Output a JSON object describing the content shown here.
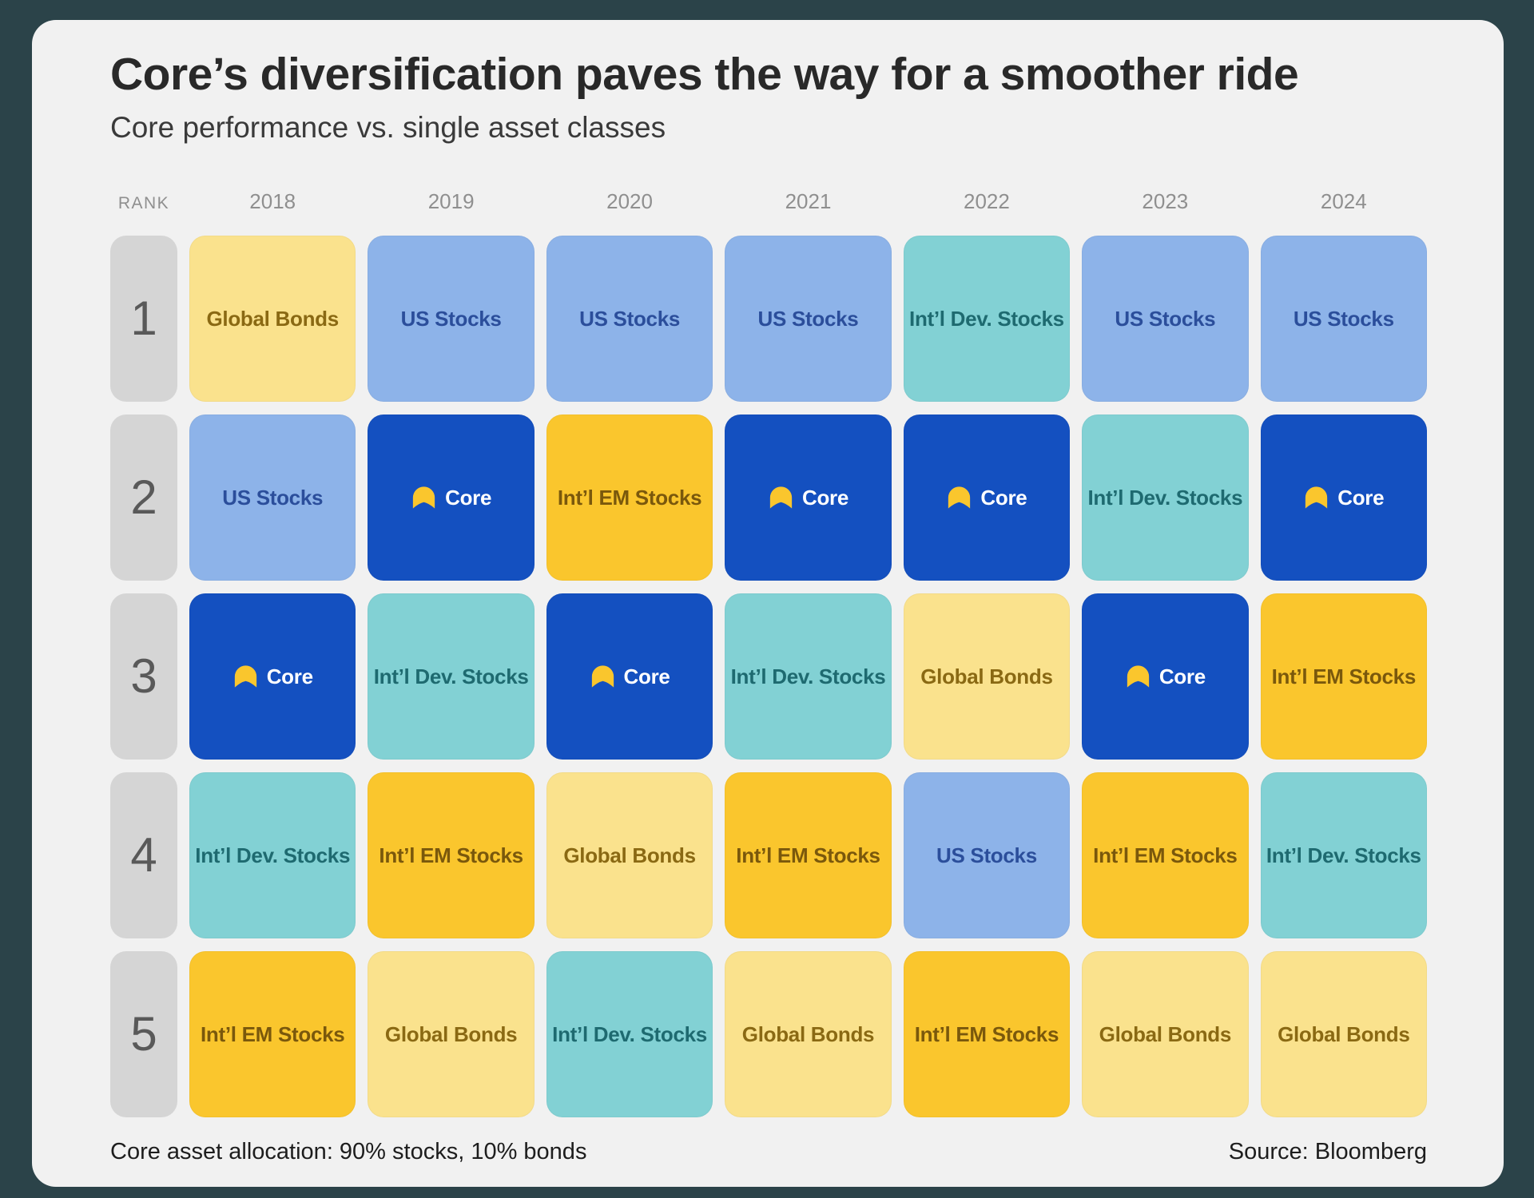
{
  "title": "Core’s diversification paves the way for a smoother ride",
  "subtitle": "Core performance vs. single asset classes",
  "footer": {
    "left": "Core asset allocation: 90% stocks, 10% bonds",
    "right": "Source: Bloomberg"
  },
  "colors": {
    "page_background": "#2B4349",
    "card_background": "#F1F1F1",
    "rank_pill": "#D5D5D5",
    "header_text": "#8F8F8F"
  },
  "assets": {
    "us_stocks": {
      "label": "US Stocks",
      "bg": "#8DB3E9",
      "fg": "#2B4E9B"
    },
    "core": {
      "label": "Core",
      "bg": "#1450C0",
      "fg": "#FFFFFF",
      "icon": "core-logo-icon",
      "icon_color": "#FAC62D"
    },
    "intl_dev_stocks": {
      "label": "Int’l Dev. Stocks",
      "bg": "#82D1D4",
      "fg": "#1E6A70"
    },
    "intl_em_stocks": {
      "label": "Int’l EM Stocks",
      "bg": "#FAC62D",
      "fg": "#7A580C"
    },
    "global_bonds": {
      "label": "Global Bonds",
      "bg": "#FAE28D",
      "fg": "#8A6913"
    }
  },
  "chart_data": {
    "type": "table",
    "title": "Core’s diversification paves the way for a smoother ride",
    "subtitle": "Core performance vs. single asset classes",
    "row_label_header": "RANK",
    "rows": [
      "1",
      "2",
      "3",
      "4",
      "5"
    ],
    "columns": [
      "2018",
      "2019",
      "2020",
      "2021",
      "2022",
      "2023",
      "2024"
    ],
    "cells": [
      [
        "global_bonds",
        "us_stocks",
        "us_stocks",
        "us_stocks",
        "intl_dev_stocks",
        "us_stocks",
        "us_stocks"
      ],
      [
        "us_stocks",
        "core",
        "intl_em_stocks",
        "core",
        "core",
        "intl_dev_stocks",
        "core"
      ],
      [
        "core",
        "intl_dev_stocks",
        "core",
        "intl_dev_stocks",
        "global_bonds",
        "core",
        "intl_em_stocks"
      ],
      [
        "intl_dev_stocks",
        "intl_em_stocks",
        "global_bonds",
        "intl_em_stocks",
        "us_stocks",
        "intl_em_stocks",
        "intl_dev_stocks"
      ],
      [
        "intl_em_stocks",
        "global_bonds",
        "intl_dev_stocks",
        "global_bonds",
        "intl_em_stocks",
        "global_bonds",
        "global_bonds"
      ]
    ],
    "legend_note": "Core asset allocation: 90% stocks, 10% bonds",
    "source": "Source: Bloomberg"
  }
}
